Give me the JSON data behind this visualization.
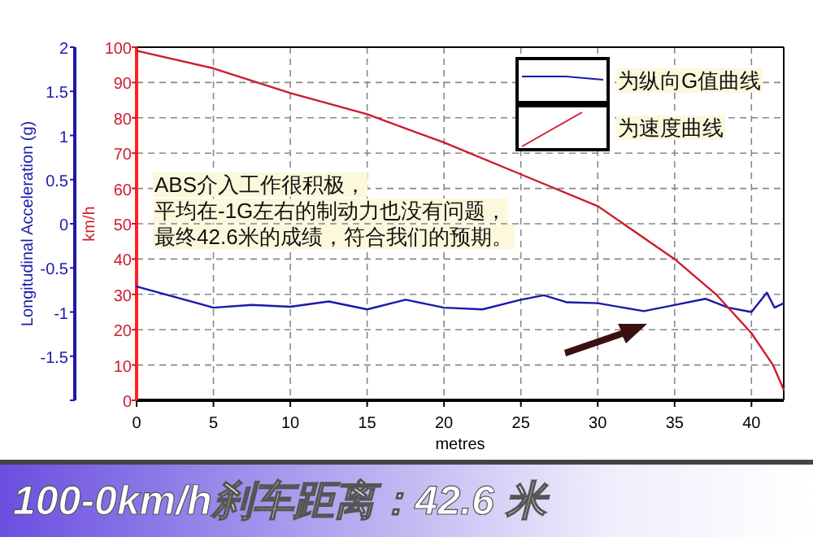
{
  "chart_data": {
    "type": "line",
    "title": "100-0km/h刹车距离：42.6 米",
    "xlabel": "metres",
    "ylabel": "km/h",
    "y2label": "Longitudinal Acceleration (g)",
    "annotations": [
      "ABS介入工作很积极，",
      "平均在-1G左右的制动力也没有问题，",
      "最终42.6米的成绩，符合我们的预期。"
    ],
    "xlim": [
      0,
      42.1
    ],
    "xticks": [
      0,
      5,
      10,
      15,
      20,
      25,
      30,
      35,
      40
    ],
    "ylim": [
      0,
      100
    ],
    "yticks": [
      0,
      10,
      20,
      30,
      40,
      50,
      60,
      70,
      80,
      90,
      100
    ],
    "y2lim": [
      -2,
      2
    ],
    "y2ticks": [
      {
        "value": -2,
        "label": null
      },
      -1.5,
      -1,
      -0.5,
      0,
      0.5,
      1,
      1.5,
      2
    ],
    "grid": true,
    "legend": "top right",
    "marker": "none",
    "line_style": "solid",
    "series": [
      {
        "name": "为纵向G值曲线",
        "color": "#1a1aa8",
        "axis": "y2",
        "x": [
          0,
          5,
          7.5,
          10,
          12.5,
          15,
          17.5,
          20,
          22.5,
          25,
          26.5,
          28,
          30,
          33,
          35,
          37,
          38.5,
          40,
          41,
          41.5,
          42.1
        ],
        "values": [
          -0.71,
          -0.95,
          -0.92,
          -0.94,
          -0.88,
          -0.97,
          -0.86,
          -0.95,
          -0.97,
          -0.86,
          -0.81,
          -0.89,
          -0.9,
          -0.99,
          -0.92,
          -0.85,
          -0.95,
          -1.0,
          -0.78,
          -0.95,
          -0.9
        ]
      },
      {
        "name": "为速度曲线",
        "color": "#cc1c2c",
        "x": [
          0,
          5,
          10,
          15,
          20,
          25,
          30,
          35,
          37.7,
          40,
          41.4,
          42.1
        ],
        "values": [
          99,
          94,
          87,
          81,
          73,
          64,
          55,
          40,
          30,
          19,
          10,
          3
        ]
      }
    ]
  }
}
